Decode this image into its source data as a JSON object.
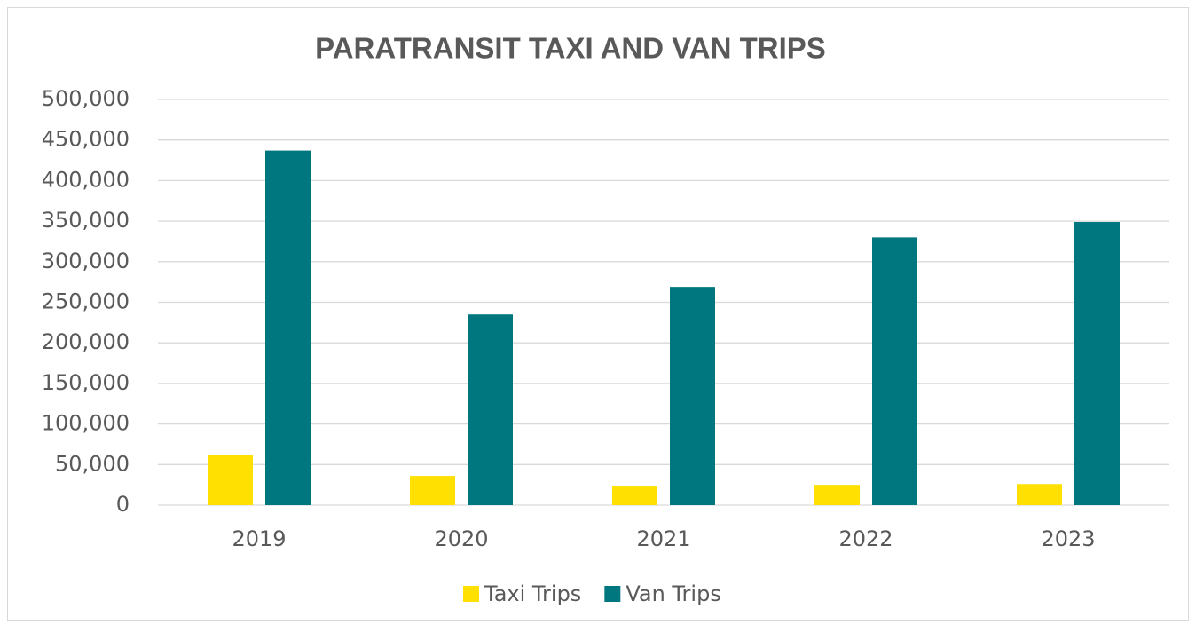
{
  "chart_data": {
    "type": "bar",
    "title": "PARATRANSIT TAXI AND VAN TRIPS",
    "categories": [
      "2019",
      "2020",
      "2021",
      "2022",
      "2023"
    ],
    "series": [
      {
        "name": "Taxi Trips",
        "color": "#FFE000",
        "values": [
          62000,
          36000,
          24000,
          25000,
          26000
        ]
      },
      {
        "name": "Van Trips",
        "color": "#00777F",
        "values": [
          437000,
          235000,
          269000,
          330000,
          349000
        ]
      }
    ],
    "ylim": [
      0,
      500000
    ],
    "yticks": [
      0,
      {
        "value": 50000,
        "label": "50,000"
      },
      {
        "value": 100000,
        "label": "100,000"
      },
      {
        "value": 150000,
        "label": "150,000"
      },
      {
        "value": 200000,
        "label": "200,000"
      },
      {
        "value": 250000,
        "label": "250,000"
      },
      {
        "value": 300000,
        "label": "300,000"
      },
      {
        "value": 350000,
        "label": "350,000"
      },
      {
        "value": 400000,
        "label": "400,000"
      },
      {
        "value": 450000,
        "label": "450,000"
      },
      {
        "value": 500000,
        "label": "500,000"
      }
    ],
    "grid": true,
    "legend": "bottom"
  }
}
